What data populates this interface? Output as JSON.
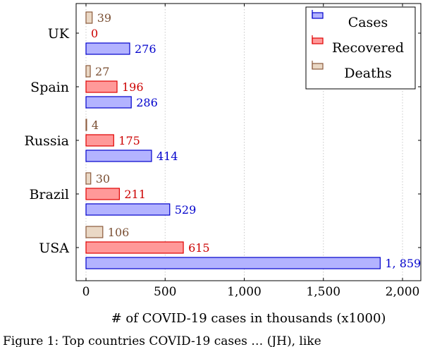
{
  "chart_data": {
    "type": "bar",
    "orientation": "horizontal",
    "categories": [
      "USA",
      "Brazil",
      "Russia",
      "Spain",
      "UK"
    ],
    "series": [
      {
        "name": "Cases",
        "values": [
          1859,
          529,
          414,
          286,
          276
        ],
        "labels": [
          "1, 859",
          "529",
          "414",
          "286",
          "276"
        ],
        "fill": "#b3b3ff",
        "stroke": "#0000cc",
        "text_color": "#0000cc"
      },
      {
        "name": "Recovered",
        "values": [
          615,
          211,
          175,
          196,
          0
        ],
        "labels": [
          "615",
          "211",
          "175",
          "196",
          "0"
        ],
        "fill": "#ff9999",
        "stroke": "#e00000",
        "text_color": "#cc0000"
      },
      {
        "name": "Deaths",
        "values": [
          106,
          30,
          4,
          27,
          39
        ],
        "labels": [
          "106",
          "30",
          "4",
          "27",
          "39"
        ],
        "fill": "#ead8c5",
        "stroke": "#8b5a3c",
        "text_color": "#7a4f33"
      }
    ],
    "xlim": [
      0,
      2100
    ],
    "xticks": [
      0,
      500,
      1000,
      1500,
      2000
    ],
    "xtick_labels": [
      "0",
      "500",
      "1,000",
      "1,500",
      "2,000"
    ],
    "xlabel": "# of COVID-19 cases in thousands (x1000)",
    "ylabel": "",
    "grid": true,
    "legend_position": "top-right"
  },
  "caption": "Figure 1: Top countries COVID-19 cases … (JH), like"
}
